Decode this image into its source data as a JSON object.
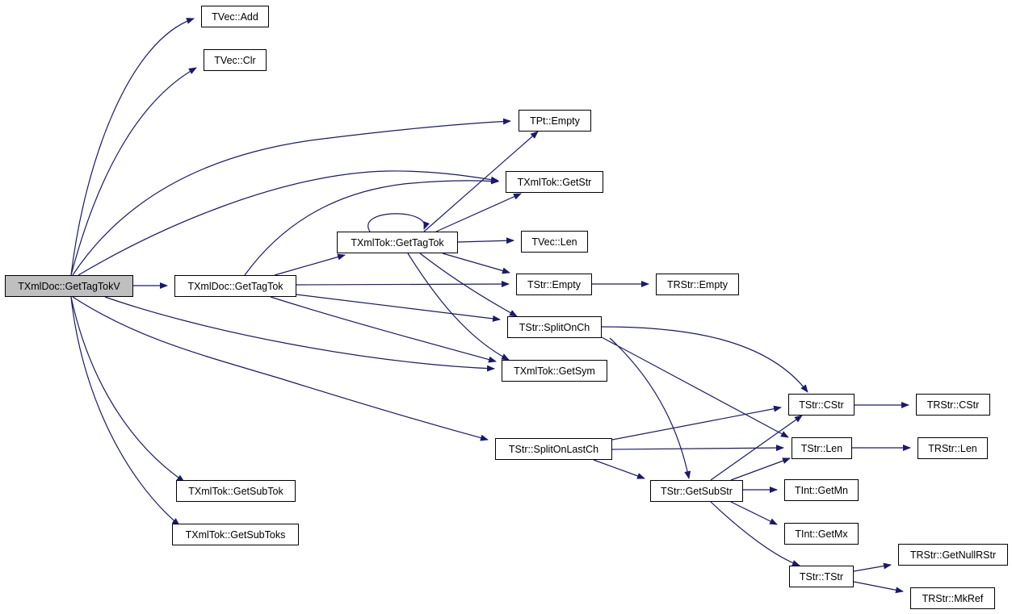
{
  "colors": {
    "edge": "#191970",
    "root_fill": "#bfbfbf",
    "node_fill": "#ffffff",
    "border": "#000000"
  },
  "nodes": [
    {
      "id": "root",
      "label": "TXmlDoc::GetTagTokV",
      "root": true
    },
    {
      "id": "vecadd",
      "label": "TVec::Add"
    },
    {
      "id": "vecclr",
      "label": "TVec::Clr"
    },
    {
      "id": "ptempty",
      "label": "TPt::Empty"
    },
    {
      "id": "tokgetstr",
      "label": "TXmlTok::GetStr"
    },
    {
      "id": "tokgettagtok",
      "label": "TXmlTok::GetTagTok"
    },
    {
      "id": "veclen",
      "label": "TVec::Len"
    },
    {
      "id": "docgettagtok",
      "label": "TXmlDoc::GetTagTok"
    },
    {
      "id": "strempty",
      "label": "TStr::Empty"
    },
    {
      "id": "rstrempty",
      "label": "TRStr::Empty"
    },
    {
      "id": "splitonch",
      "label": "TStr::SplitOnCh"
    },
    {
      "id": "getsym",
      "label": "TXmlTok::GetSym"
    },
    {
      "id": "strcstr",
      "label": "TStr::CStr"
    },
    {
      "id": "rstrcstr",
      "label": "TRStr::CStr"
    },
    {
      "id": "splitonlastch",
      "label": "TStr::SplitOnLastCh"
    },
    {
      "id": "strlen",
      "label": "TStr::Len"
    },
    {
      "id": "rstrlen",
      "label": "TRStr::Len"
    },
    {
      "id": "getsubtok",
      "label": "TXmlTok::GetSubTok"
    },
    {
      "id": "getsubstr",
      "label": "TStr::GetSubStr"
    },
    {
      "id": "intgetmn",
      "label": "TInt::GetMn"
    },
    {
      "id": "getsubtoks",
      "label": "TXmlTok::GetSubToks"
    },
    {
      "id": "intgetmx",
      "label": "TInt::GetMx"
    },
    {
      "id": "strtstr",
      "label": "TStr::TStr"
    },
    {
      "id": "getnullrstr",
      "label": "TRStr::GetNullRStr"
    },
    {
      "id": "mkref",
      "label": "TRStr::MkRef"
    }
  ],
  "edges": [
    [
      "root",
      "vecadd"
    ],
    [
      "root",
      "vecclr"
    ],
    [
      "root",
      "ptempty"
    ],
    [
      "root",
      "tokgetstr"
    ],
    [
      "root",
      "docgettagtok"
    ],
    [
      "root",
      "getsym"
    ],
    [
      "root",
      "splitonlastch"
    ],
    [
      "root",
      "getsubtok"
    ],
    [
      "root",
      "getsubtoks"
    ],
    [
      "docgettagtok",
      "tokgetstr"
    ],
    [
      "docgettagtok",
      "tokgettagtok"
    ],
    [
      "docgettagtok",
      "strempty"
    ],
    [
      "docgettagtok",
      "splitonch"
    ],
    [
      "docgettagtok",
      "getsym"
    ],
    [
      "tokgettagtok",
      "tokgettagtok"
    ],
    [
      "tokgettagtok",
      "ptempty"
    ],
    [
      "tokgettagtok",
      "tokgetstr"
    ],
    [
      "tokgettagtok",
      "veclen"
    ],
    [
      "tokgettagtok",
      "strempty"
    ],
    [
      "tokgettagtok",
      "splitonch"
    ],
    [
      "tokgettagtok",
      "getsym"
    ],
    [
      "strempty",
      "rstrempty"
    ],
    [
      "splitonch",
      "strcstr"
    ],
    [
      "splitonch",
      "strlen"
    ],
    [
      "splitonch",
      "getsubstr"
    ],
    [
      "splitonlastch",
      "strcstr"
    ],
    [
      "splitonlastch",
      "strlen"
    ],
    [
      "splitonlastch",
      "getsubstr"
    ],
    [
      "getsubstr",
      "strcstr"
    ],
    [
      "getsubstr",
      "strlen"
    ],
    [
      "getsubstr",
      "intgetmn"
    ],
    [
      "getsubstr",
      "intgetmx"
    ],
    [
      "getsubstr",
      "strtstr"
    ],
    [
      "strcstr",
      "rstrcstr"
    ],
    [
      "strlen",
      "rstrlen"
    ],
    [
      "strtstr",
      "getnullrstr"
    ],
    [
      "strtstr",
      "mkref"
    ]
  ]
}
